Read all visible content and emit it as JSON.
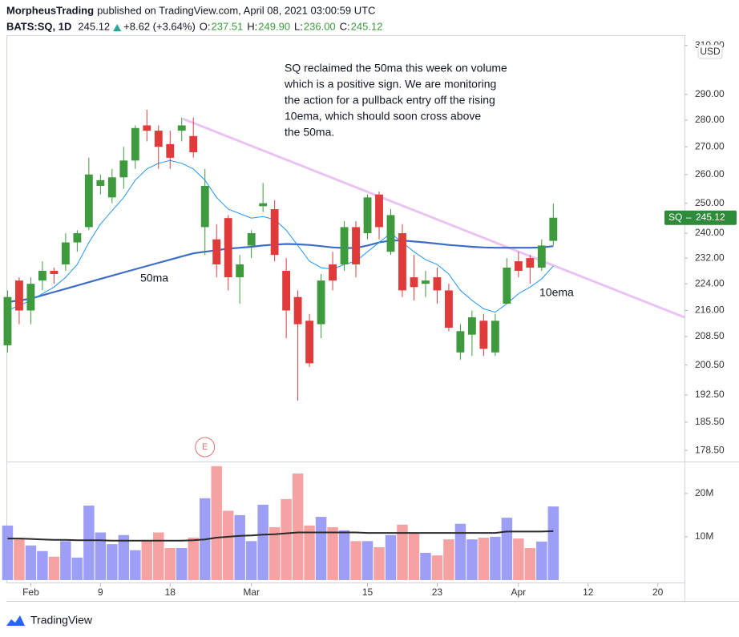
{
  "header": {
    "author": "MorpheusTrading",
    "published": "published on TradingView.com, April 08, 2021 03:00:59 UTC",
    "symbol": "BATS:SQ, 1D",
    "last": "245.12",
    "change": "+8.62 (+3.64%)",
    "ohlc": [
      {
        "label": "O:",
        "value": "237.51"
      },
      {
        "label": "H:",
        "value": "249.90"
      },
      {
        "label": "L:",
        "value": "236.00"
      },
      {
        "label": "C:",
        "value": "245.12"
      }
    ]
  },
  "chart_data": {
    "type": "candlestick",
    "log": true,
    "grid": false,
    "currency": "USD",
    "up_color": "#3d9a3d",
    "down_color": "#e03a3a",
    "ylim": [
      176,
      314
    ],
    "yticks": [
      {
        "value": 178.5,
        "label": "178.50"
      },
      {
        "value": 185.5,
        "label": "185.50"
      },
      {
        "value": 192.5,
        "label": "192.50"
      },
      {
        "value": 200.5,
        "label": "200.50"
      },
      {
        "value": 208.5,
        "label": "208.50"
      },
      {
        "value": 216,
        "label": "216.00"
      },
      {
        "value": 224,
        "label": "224.00"
      },
      {
        "value": 232,
        "label": "232.00"
      },
      {
        "value": 240,
        "label": "240.00"
      },
      {
        "value": 250,
        "label": "250.00"
      },
      {
        "value": 260,
        "label": "260.00"
      },
      {
        "value": 270,
        "label": "270.00"
      },
      {
        "value": 280,
        "label": "280.00"
      },
      {
        "value": 290,
        "label": "290.00"
      },
      {
        "value": 310,
        "label": "310.00"
      }
    ],
    "xlim": [
      -0.1,
      58.3
    ],
    "xticks": [
      {
        "value": 2,
        "label": "Feb"
      },
      {
        "value": 8,
        "label": "9"
      },
      {
        "value": 14,
        "label": "18"
      },
      {
        "value": 21,
        "label": "Mar"
      },
      {
        "value": 31,
        "label": "15"
      },
      {
        "value": 37,
        "label": "23"
      },
      {
        "value": 44,
        "label": "Apr"
      },
      {
        "value": 50,
        "label": "12"
      },
      {
        "value": 56,
        "label": "20"
      }
    ],
    "open": [
      206,
      225,
      216,
      225,
      228,
      230,
      237,
      242,
      256,
      252,
      259,
      265,
      278,
      276,
      271,
      276,
      274,
      242,
      238,
      245,
      226,
      236,
      249,
      248,
      228,
      220,
      213,
      212,
      230,
      230,
      242,
      240,
      253,
      234,
      240,
      226,
      224,
      226,
      222,
      204,
      209,
      213,
      204,
      218,
      231,
      232,
      229,
      237.51
    ],
    "high": [
      222,
      226,
      226,
      231,
      229,
      240,
      241,
      266,
      260,
      262,
      270,
      278,
      284,
      278,
      276,
      281,
      281,
      262,
      243,
      246,
      233,
      241,
      257,
      251,
      232,
      222,
      215,
      227,
      234,
      244,
      244,
      253,
      254,
      248,
      243,
      233,
      228,
      229,
      224,
      212,
      216,
      215,
      215,
      232,
      234,
      233,
      238,
      249.9
    ],
    "low": [
      204,
      212,
      212,
      222,
      224,
      228,
      234,
      241,
      253,
      250,
      255,
      262,
      272,
      262,
      262,
      272,
      266,
      233,
      226,
      222,
      218,
      232,
      247,
      231,
      208,
      191,
      200,
      208,
      222,
      228,
      226,
      238,
      238,
      233,
      220,
      219,
      220,
      218,
      210,
      202,
      203,
      203,
      203,
      218,
      226,
      224,
      228,
      236
    ],
    "close": [
      220,
      216,
      224,
      228,
      227,
      237,
      240,
      260,
      258,
      259,
      265,
      277,
      276,
      270,
      266,
      278,
      268,
      256,
      230,
      226,
      230,
      240,
      250,
      233,
      216,
      212,
      201,
      225,
      225,
      242,
      230,
      252,
      242,
      246,
      222,
      223,
      225,
      222,
      211,
      210,
      214,
      205,
      213,
      229,
      228,
      229,
      236,
      245.12
    ],
    "series": [
      {
        "name": "50ma",
        "color": "#3d6cc8",
        "width": 2.2,
        "values": [
          218.5,
          219,
          219.5,
          220.5,
          221.5,
          222.5,
          223.5,
          224.5,
          225.5,
          226.5,
          227.5,
          228.5,
          229.5,
          230.5,
          231.5,
          232.5,
          233.5,
          234,
          234.5,
          235,
          235.3,
          235.6,
          236,
          236.3,
          236.5,
          236.4,
          236.2,
          235.8,
          235.4,
          235.2,
          235.2,
          236,
          237,
          237.6,
          237.6,
          237.3,
          237,
          236.6,
          236.2,
          235.9,
          235.6,
          235.4,
          235.3,
          235.3,
          235.3,
          235.3,
          235.4,
          235.8
        ]
      },
      {
        "name": "10ema",
        "color": "#2196f3",
        "width": 1,
        "values": [
          216,
          217.5,
          219,
          221,
          223,
          226,
          230,
          237,
          243,
          247.5,
          252,
          258,
          262,
          264,
          265,
          264,
          262,
          258,
          252,
          248,
          246.5,
          245,
          245.5,
          244.5,
          241,
          236,
          231,
          229,
          228.5,
          230,
          231,
          234,
          237,
          240,
          237,
          234,
          231.5,
          230,
          227,
          222,
          219,
          216.5,
          215.5,
          218,
          221,
          223,
          225.5,
          229.5
        ]
      }
    ],
    "trendline": {
      "color": "#e9c4f2",
      "x": [
        15.1,
        58.3
      ],
      "values": [
        280.5,
        214
      ]
    },
    "price_tag": {
      "symbol": "SQ",
      "label": "245.12",
      "color": "#2e8b3a"
    },
    "earnings": {
      "label": "E",
      "x": 17,
      "color": "#e57373"
    },
    "annotation": [
      "SQ reclaimed the 50ma this week on volume",
      "which is a positive sign.  We are monitoring",
      "the action for a pullback entry off the rising",
      "10ema, which should soon cross above",
      "the 50ma."
    ],
    "volume": {
      "up_color": "#9d9ef6",
      "down_color": "#f7a2a2",
      "ylim": [
        0,
        27
      ],
      "yticks": [
        {
          "value": 10,
          "label": "10M"
        },
        {
          "value": 20,
          "label": "20M"
        }
      ],
      "values": [
        12.6,
        9.6,
        8,
        6.7,
        5.4,
        9,
        5.2,
        17.2,
        11,
        8.3,
        10.4,
        6.9,
        9,
        11,
        7.4,
        7.4,
        9.8,
        18.9,
        26.3,
        16,
        15,
        9,
        17.4,
        12.2,
        18.7,
        24.6,
        12.6,
        14.6,
        12.2,
        11.5,
        9,
        9,
        7.6,
        10.4,
        12.8,
        11,
        6.3,
        5.7,
        9.4,
        13,
        9.4,
        9.8,
        10,
        14.4,
        9.6,
        7.4,
        8.9,
        17
      ],
      "ma_color": "#2a2a2a",
      "ma": [
        9.6,
        9.6,
        9.5,
        9.4,
        9.3,
        9.3,
        9.2,
        9.2,
        9.2,
        9.1,
        9.1,
        9.1,
        9.1,
        9.1,
        9.1,
        9.1,
        9.2,
        9.4,
        9.8,
        10,
        10.2,
        10.3,
        10.5,
        10.6,
        10.8,
        11,
        11,
        11,
        11,
        11,
        11,
        10.9,
        10.9,
        10.9,
        10.9,
        10.9,
        10.9,
        10.9,
        10.9,
        10.9,
        10.9,
        10.9,
        10.9,
        11.2,
        11.2,
        11.2,
        11.2,
        11.3
      ]
    },
    "footer": "TradingView"
  }
}
